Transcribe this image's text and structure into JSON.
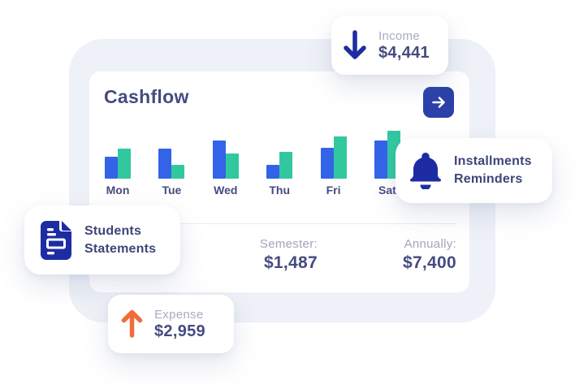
{
  "colors": {
    "navy_text": "#454b80",
    "gray_text": "#a7abbe",
    "icon_deep_blue": "#1e2ca4",
    "button_blue": "#2b41a8",
    "bar_blue": "#3364e7",
    "bar_green": "#31c8a0",
    "orange": "#f26b3a",
    "frame_gray": "#eef1f7"
  },
  "main_card": {
    "title": "Cashflow",
    "summary": {
      "semester_label": "Semester:",
      "semester_value": "$1,487",
      "annually_label": "Annually:",
      "annually_value": "$7,400"
    }
  },
  "chart_data": {
    "type": "bar",
    "categories": [
      "Mon",
      "Tue",
      "Wed",
      "Thu",
      "Fri",
      "Sat"
    ],
    "series": [
      {
        "name": "blue",
        "color": "#3364e7",
        "values": [
          27,
          37,
          47,
          17,
          38,
          47
        ]
      },
      {
        "name": "green",
        "color": "#31c8a0",
        "values": [
          37,
          17,
          31,
          33,
          52,
          59
        ]
      }
    ],
    "title": "Cashflow",
    "xlabel": "",
    "ylabel": "",
    "ylim": [
      0,
      60
    ],
    "legend": "none",
    "axes": "hidden"
  },
  "cards": {
    "income": {
      "label": "Income",
      "value": "$4,441",
      "icon": "arrow-down-icon"
    },
    "expense": {
      "label": "Expense",
      "value": "$2,959",
      "icon": "arrow-up-icon"
    },
    "installments": {
      "lines": [
        "Installments",
        "Reminders"
      ],
      "icon": "bell-icon"
    },
    "students": {
      "lines": [
        "Students",
        "Statements"
      ],
      "icon": "document-icon"
    }
  },
  "buttons": {
    "goto": {
      "icon": "arrow-right-icon"
    }
  }
}
